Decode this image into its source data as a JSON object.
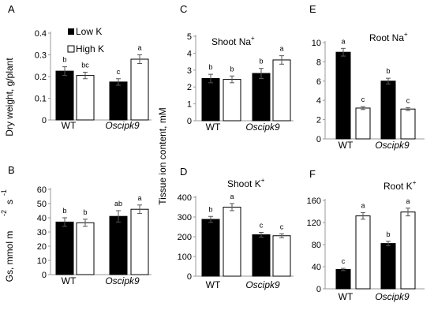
{
  "chart_data": [
    {
      "panel": "A",
      "type": "bar",
      "title": "",
      "ylabel": "Dry weight, g/plant",
      "ylim": [
        0,
        0.4
      ],
      "yticks": [
        0,
        0.1,
        0.2,
        0.3,
        0.4
      ],
      "ytick_labels": [
        "0",
        "0.1",
        "0.2",
        "0.3",
        "0.4"
      ],
      "categories": [
        "WT",
        "Oscipk9"
      ],
      "series": [
        {
          "name": "Low K",
          "values": [
            0.225,
            0.175
          ],
          "errors": [
            0.02,
            0.015
          ],
          "sig": [
            "b",
            "c"
          ]
        },
        {
          "name": "High K",
          "values": [
            0.205,
            0.28
          ],
          "errors": [
            0.015,
            0.02
          ],
          "sig": [
            "bc",
            "a"
          ]
        }
      ]
    },
    {
      "panel": "B",
      "type": "bar",
      "title": "",
      "ylabel": "Gs, mmol m",
      "ylim": [
        0,
        60
      ],
      "yticks": [
        0,
        10,
        20,
        30,
        40,
        50,
        60
      ],
      "ytick_labels": [
        "0",
        "10",
        "20",
        "30",
        "40",
        "50",
        "60"
      ],
      "categories": [
        "WT",
        "Oscipk9"
      ],
      "series": [
        {
          "name": "Low K",
          "values": [
            37,
            41
          ],
          "errors": [
            3,
            4
          ],
          "sig": [
            "b",
            "ab"
          ]
        },
        {
          "name": "High K",
          "values": [
            36.5,
            46
          ],
          "errors": [
            2.5,
            3
          ],
          "sig": [
            "b",
            "a"
          ]
        }
      ]
    },
    {
      "panel": "C",
      "type": "bar",
      "title": "Shoot Na",
      "ylabel": "Tissue ion content, mM",
      "ylim": [
        0,
        5
      ],
      "yticks": [
        0,
        1,
        2,
        3,
        4,
        5
      ],
      "ytick_labels": [
        "0",
        "1",
        "2",
        "3",
        "4",
        "5"
      ],
      "categories": [
        "WT",
        "Oscipk9"
      ],
      "series": [
        {
          "name": "Low K",
          "values": [
            2.5,
            2.8
          ],
          "errors": [
            0.25,
            0.3
          ],
          "sig": [
            "b",
            "b"
          ]
        },
        {
          "name": "High K",
          "values": [
            2.45,
            3.6
          ],
          "errors": [
            0.2,
            0.25
          ],
          "sig": [
            "b",
            "a"
          ]
        }
      ]
    },
    {
      "panel": "D",
      "type": "bar",
      "title": "Shoot K",
      "ylabel": "",
      "ylim": [
        0,
        400
      ],
      "yticks": [
        0,
        100,
        200,
        300,
        400
      ],
      "ytick_labels": [
        "0",
        "100",
        "200",
        "300",
        "400"
      ],
      "categories": [
        "WT",
        "Oscipk9"
      ],
      "series": [
        {
          "name": "Low K",
          "values": [
            288,
            210
          ],
          "errors": [
            15,
            12
          ],
          "sig": [
            "b",
            "c"
          ]
        },
        {
          "name": "High K",
          "values": [
            350,
            205
          ],
          "errors": [
            18,
            10
          ],
          "sig": [
            "a",
            "c"
          ]
        }
      ]
    },
    {
      "panel": "E",
      "type": "bar",
      "title": "Root Na",
      "ylabel": "",
      "ylim": [
        0,
        10
      ],
      "yticks": [
        0,
        2,
        4,
        6,
        8,
        10
      ],
      "ytick_labels": [
        "0",
        "2",
        "4",
        "6",
        "8",
        "10"
      ],
      "categories": [
        "WT",
        "Oscipk9"
      ],
      "series": [
        {
          "name": "Low K",
          "values": [
            9,
            6
          ],
          "errors": [
            0.4,
            0.3
          ],
          "sig": [
            "a",
            "b"
          ]
        },
        {
          "name": "High K",
          "values": [
            3.2,
            3.1
          ],
          "errors": [
            0.15,
            0.15
          ],
          "sig": [
            "c",
            "c"
          ]
        }
      ]
    },
    {
      "panel": "F",
      "type": "bar",
      "title": "Root K",
      "ylabel": "",
      "ylim": [
        0,
        160
      ],
      "yticks": [
        0,
        40,
        80,
        120,
        160
      ],
      "ytick_labels": [
        "0",
        "40",
        "80",
        "120",
        "160"
      ],
      "categories": [
        "WT",
        "Oscipk9"
      ],
      "series": [
        {
          "name": "Low K",
          "values": [
            35,
            82
          ],
          "errors": [
            2,
            4
          ],
          "sig": [
            "c",
            "b"
          ]
        },
        {
          "name": "High K",
          "values": [
            132,
            139
          ],
          "errors": [
            6,
            7
          ],
          "sig": [
            "a",
            "a"
          ]
        }
      ]
    }
  ],
  "legend": {
    "items": [
      "Low K",
      "High K"
    ]
  },
  "text": {
    "gs_exp_neg2": "-2",
    "gs_s": "s",
    "gs_exp_neg1": "-1",
    "superscript_plus": "+"
  },
  "colors": {
    "low_k": "#000000",
    "high_k": "#ffffff",
    "stroke": "#000000",
    "axis": "#9a9a9a",
    "error": "#555555"
  }
}
